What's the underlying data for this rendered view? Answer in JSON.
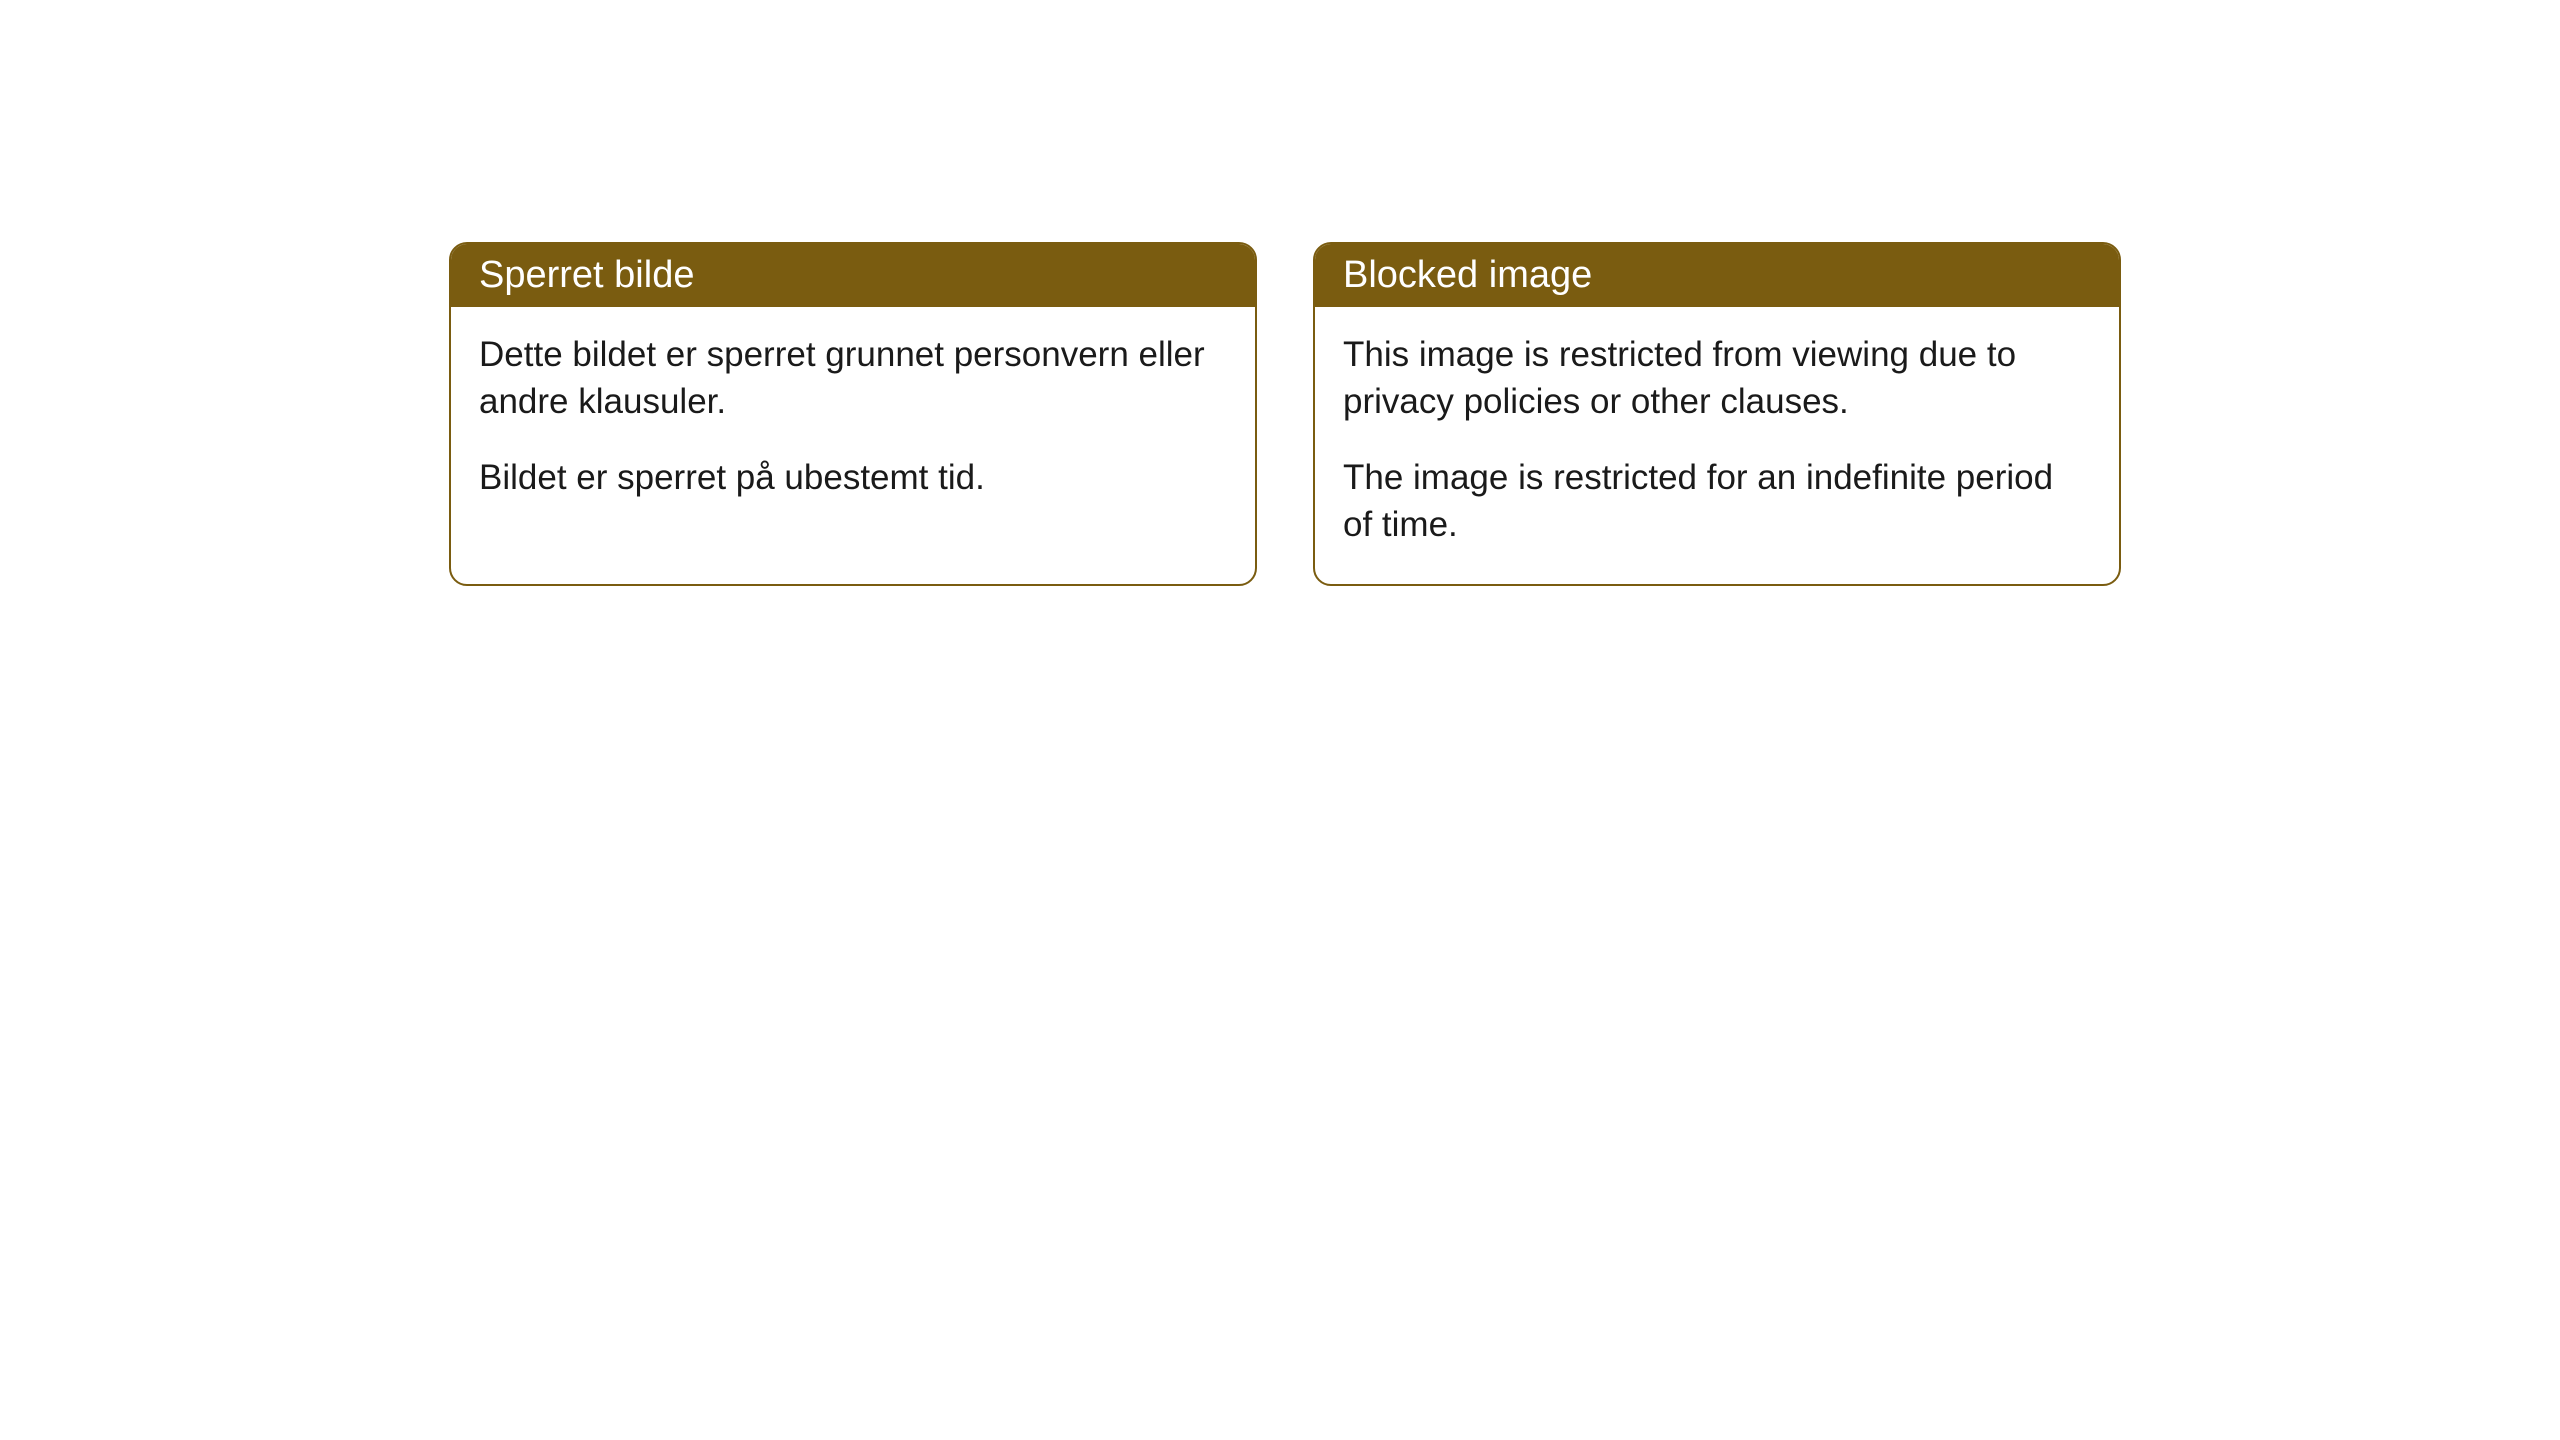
{
  "cards": [
    {
      "title": "Sperret bilde",
      "para1": "Dette bildet er sperret grunnet personvern eller andre klausuler.",
      "para2": "Bildet er sperret på ubestemt tid."
    },
    {
      "title": "Blocked image",
      "para1": "This image is restricted from viewing due to privacy policies or other clauses.",
      "para2": "The image is restricted for an indefinite period of time."
    }
  ],
  "styles": {
    "header_bg": "#7a5c10",
    "header_text_color": "#ffffff",
    "border_color": "#7a5c10",
    "body_bg": "#ffffff",
    "body_text_color": "#1a1a1a",
    "border_radius": 18,
    "header_fontsize": 38,
    "body_fontsize": 35
  }
}
